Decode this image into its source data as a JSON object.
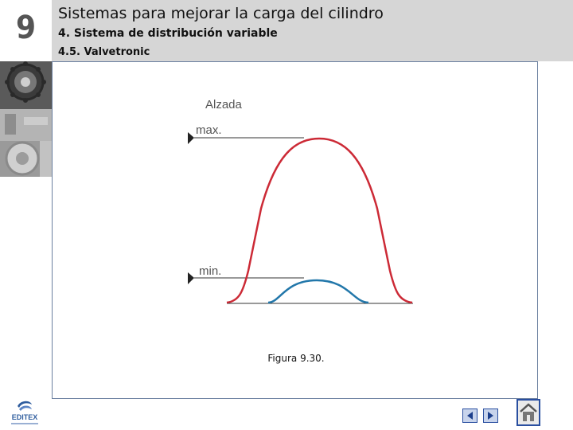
{
  "chapter": {
    "number": "9"
  },
  "header": {
    "title": "Sistemas para mejorar la carga del cilindro",
    "subtitle": "4. Sistema de distribución variable",
    "section": "4.5. Valvetronic"
  },
  "figure": {
    "y_axis_label": "Alzada",
    "max_label": "max.",
    "min_label": "min.",
    "caption": "Figura 9.30.",
    "colors": {
      "max_curve": "#cc2a36",
      "min_curve": "#2277aa"
    }
  },
  "footer": {
    "logo_text": "EDITEX",
    "icons": [
      "editex-logo-icon",
      "previous-arrow-icon",
      "next-arrow-icon",
      "home-icon"
    ]
  }
}
